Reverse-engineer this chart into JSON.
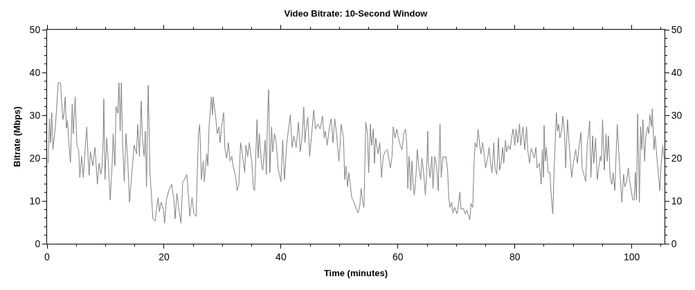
{
  "chart_data": {
    "type": "line",
    "title": "Video Bitrate: 10-Second Window",
    "xlabel": "Time (minutes)",
    "ylabel": "Bitrate (Mbps)",
    "xlim": [
      0,
      105.6
    ],
    "xticks": [
      0,
      {
        "value": 5,
        "label": null
      },
      {
        "value": 10,
        "label": null
      },
      {
        "value": 15,
        "label": null
      },
      20,
      {
        "value": 25,
        "label": null
      },
      {
        "value": 30,
        "label": null
      },
      {
        "value": 35,
        "label": null
      },
      40,
      {
        "value": 45,
        "label": null
      },
      {
        "value": 50,
        "label": null
      },
      {
        "value": 55,
        "label": null
      },
      60,
      {
        "value": 65,
        "label": null
      },
      {
        "value": 70,
        "label": null
      },
      {
        "value": 75,
        "label": null
      },
      80,
      {
        "value": 85,
        "label": null
      },
      {
        "value": 90,
        "label": null
      },
      {
        "value": 95,
        "label": null
      },
      100,
      {
        "value": 105,
        "label": null
      }
    ],
    "ylim": [
      0,
      50
    ],
    "yticks": [
      0,
      {
        "value": 2,
        "label": null
      },
      {
        "value": 4,
        "label": null
      },
      {
        "value": 6,
        "label": null
      },
      {
        "value": 8,
        "label": null
      },
      10,
      {
        "value": 12,
        "label": null
      },
      {
        "value": 14,
        "label": null
      },
      {
        "value": 16,
        "label": null
      },
      {
        "value": 18,
        "label": null
      },
      20,
      {
        "value": 22,
        "label": null
      },
      {
        "value": 24,
        "label": null
      },
      {
        "value": 26,
        "label": null
      },
      {
        "value": 28,
        "label": null
      },
      30,
      {
        "value": 32,
        "label": null
      },
      {
        "value": 34,
        "label": null
      },
      {
        "value": 36,
        "label": null
      },
      {
        "value": 38,
        "label": null
      },
      40,
      {
        "value": 42,
        "label": null
      },
      {
        "value": 44,
        "label": null
      },
      {
        "value": 46,
        "label": null
      },
      {
        "value": 48,
        "label": null
      },
      50
    ],
    "y2lim": [
      0,
      50
    ],
    "y2ticks": [
      0,
      {
        "value": 2,
        "label": null
      },
      {
        "value": 4,
        "label": null
      },
      {
        "value": 6,
        "label": null
      },
      {
        "value": 8,
        "label": null
      },
      10,
      {
        "value": 12,
        "label": null
      },
      {
        "value": 14,
        "label": null
      },
      {
        "value": 16,
        "label": null
      },
      {
        "value": 18,
        "label": null
      },
      20,
      {
        "value": 22,
        "label": null
      },
      {
        "value": 24,
        "label": null
      },
      {
        "value": 26,
        "label": null
      },
      {
        "value": 28,
        "label": null
      },
      30,
      {
        "value": 32,
        "label": null
      },
      {
        "value": 34,
        "label": null
      },
      {
        "value": 36,
        "label": null
      },
      {
        "value": 38,
        "label": null
      },
      40,
      {
        "value": 42,
        "label": null
      },
      {
        "value": 44,
        "label": null
      },
      {
        "value": 46,
        "label": null
      },
      {
        "value": 48,
        "label": null
      },
      50
    ],
    "x": [
      0.2,
      0.4,
      0.6,
      0.8,
      1.0,
      1.4,
      1.6,
      1.9,
      2.3,
      2.5,
      2.7,
      2.9,
      3.1,
      3.3,
      3.5,
      3.7,
      4.0,
      4.3,
      4.5,
      4.8,
      5.1,
      5.4,
      5.6,
      5.9,
      6.2,
      6.5,
      6.8,
      7.0,
      7.2,
      7.4,
      7.8,
      8.2,
      8.6,
      8.9,
      9.2,
      9.4,
      9.6,
      9.7,
      9.9,
      10.2,
      10.5,
      10.8,
      11.1,
      11.3,
      11.6,
      11.8,
      12.1,
      12.3,
      12.5,
      12.7,
      12.9,
      13.2,
      13.5,
      13.8,
      14.1,
      14.6,
      14.9,
      15.3,
      15.5,
      15.8,
      16.1,
      16.3,
      16.6,
      16.8,
      17.0,
      17.3,
      17.6,
      18.1,
      18.5,
      18.7,
      19.0,
      19.2,
      19.5,
      19.9,
      20.1,
      20.4,
      20.8,
      21.3,
      21.7,
      21.9,
      22.2,
      22.6,
      22.9,
      23.2,
      23.5,
      23.9,
      24.2,
      24.4,
      24.8,
      25.1,
      25.5,
      25.7,
      25.9,
      26.1,
      26.4,
      26.7,
      26.9,
      27.3,
      27.5,
      27.7,
      28.1,
      28.3,
      28.4,
      28.8,
      29.1,
      29.4,
      29.6,
      29.9,
      30.2,
      30.4,
      30.7,
      31.0,
      31.3,
      31.6,
      31.8,
      32.1,
      32.3,
      32.5,
      32.8,
      33.1,
      33.4,
      33.8,
      34.0,
      34.3,
      34.6,
      35.0,
      35.3,
      35.5,
      35.9,
      36.1,
      36.3,
      36.7,
      36.9,
      37.3,
      37.5,
      37.7,
      37.9,
      38.1,
      38.4,
      38.6,
      38.9,
      39.2,
      39.5,
      40.0,
      40.3,
      40.6,
      41.0,
      41.6,
      41.9,
      42.2,
      42.6,
      43.0,
      43.3,
      43.6,
      43.9,
      44.1,
      44.3,
      44.6,
      44.9,
      45.2,
      45.6,
      45.9,
      46.3,
      46.7,
      47.1,
      47.4,
      47.6,
      47.9,
      48.3,
      48.6,
      48.9,
      49.2,
      49.5,
      49.9,
      50.1,
      50.3,
      50.7,
      50.9,
      51.1,
      51.4,
      51.6,
      51.8,
      52.1,
      52.5,
      52.9,
      53.2,
      53.5,
      53.7,
      54.0,
      54.2,
      54.4,
      54.5,
      54.8,
      55.0,
      55.3,
      55.5,
      55.8,
      56.0,
      56.2,
      56.6,
      56.9,
      57.2,
      57.5,
      57.8,
      58.2,
      58.7,
      59.0,
      59.2,
      59.5,
      59.8,
      60.1,
      60.4,
      60.7,
      61.0,
      61.3,
      61.5,
      61.7,
      61.9,
      62.2,
      62.4,
      62.6,
      62.8,
      63.1,
      63.3,
      63.6,
      63.9,
      64.1,
      64.4,
      64.7,
      64.9,
      65.1,
      65.2,
      65.5,
      65.8,
      66.0,
      66.3,
      66.6,
      66.9,
      67.2,
      67.4,
      67.7,
      68.0,
      68.2,
      68.5,
      68.7,
      68.9,
      69.2,
      69.4,
      69.7,
      70.1,
      70.3,
      70.6,
      70.8,
      71.2,
      71.5,
      71.8,
      72.1,
      72.3,
      72.5,
      72.8,
      73.0,
      73.2,
      73.5,
      73.7,
      74.0,
      74.2,
      74.5,
      74.8,
      75.0,
      75.4,
      75.6,
      75.8,
      76.1,
      76.4,
      76.6,
      76.9,
      77.2,
      77.4,
      77.7,
      77.9,
      78.1,
      78.4,
      78.6,
      78.9,
      79.2,
      79.5,
      79.7,
      80.0,
      80.2,
      80.5,
      80.8,
      81.0,
      81.4,
      81.7,
      82.0,
      82.2,
      82.5,
      82.8,
      83.1,
      83.3,
      83.6,
      83.8,
      84.2,
      84.5,
      84.7,
      84.9,
      85.0,
      85.2,
      85.4,
      85.7,
      86.0,
      86.2,
      86.4,
      86.5,
      86.7,
      86.9,
      87.1,
      87.3,
      87.5,
      87.7,
      88.0,
      88.2,
      88.5,
      88.7,
      89.0,
      89.3,
      89.5,
      89.7,
      90.0,
      90.4,
      90.7,
      91.0,
      91.3,
      91.5,
      91.8,
      92.1,
      92.4,
      92.6,
      92.8,
      93.0,
      93.3,
      93.5,
      93.8,
      94.1,
      94.3,
      94.6,
      94.8,
      95.0,
      95.3,
      95.6,
      95.8,
      96.0,
      96.3,
      96.6,
      96.8,
      97.1,
      97.5,
      97.8,
      98.0,
      98.3,
      98.6,
      98.8,
      99.1,
      99.4,
      99.6,
      99.9,
      100.2,
      100.4,
      100.6,
      100.8,
      101.0,
      101.3,
      101.5,
      101.7,
      101.9,
      102.2,
      102.4,
      102.7,
      102.9,
      103.1,
      103.4,
      103.5,
      103.8,
      104.0,
      104.3,
      104.6,
      104.8,
      105.0,
      105.3,
      105.5
    ],
    "series": [
      {
        "color": "#808080",
        "values": [
          18.8,
          29.2,
          23.6,
          30.6,
          22,
          27,
          31,
          37.6,
          37.6,
          33,
          29,
          30.5,
          34.3,
          27,
          28.8,
          24,
          19,
          32.6,
          25.7,
          34.3,
          23,
          22,
          15.5,
          20.4,
          15.5,
          22,
          27.3,
          20.4,
          16,
          21.5,
          18.2,
          22.5,
          13.9,
          18.8,
          16.2,
          18.2,
          24.7,
          33.8,
          15,
          24.7,
          18.2,
          10.2,
          17.6,
          25.7,
          18.2,
          32,
          30.5,
          37.6,
          26.3,
          37.6,
          24.2,
          14.5,
          25.7,
          19.3,
          9.7,
          18.2,
          23,
          21,
          27.8,
          20.4,
          33.3,
          24.7,
          20.4,
          26.3,
          13.3,
          37,
          16.7,
          5.8,
          5.3,
          8,
          10.8,
          7.5,
          9.7,
          8,
          4.8,
          10.2,
          12.4,
          13.9,
          10.2,
          5.8,
          11.8,
          7.5,
          4.8,
          14.5,
          15,
          16.2,
          10.8,
          6.4,
          10.8,
          7.0,
          6.4,
          17.2,
          25.7,
          27.9,
          15,
          19.3,
          14.5,
          21,
          18.2,
          27.3,
          34.3,
          30.1,
          34.3,
          30.1,
          25.7,
          27.3,
          23.6,
          27.9,
          30.6,
          22.5,
          20,
          23.6,
          19.3,
          20.4,
          18.2,
          16.6,
          15,
          12.4,
          13.9,
          23.6,
          21,
          16.6,
          23,
          20.4,
          23.6,
          19.3,
          12.9,
          12.4,
          29,
          20,
          25.7,
          18.2,
          17.2,
          24.2,
          16.2,
          29.5,
          36,
          16.6,
          27.3,
          21.5,
          25.7,
          23.6,
          17.7,
          14.5,
          24.2,
          15,
          23.6,
          30.1,
          22.5,
          25.2,
          22.5,
          28.4,
          21.5,
          24.7,
          31.9,
          23.6,
          26.8,
          29.5,
          20.4,
          24.7,
          31.2,
          26.8,
          27.9,
          26.8,
          29.8,
          24.7,
          26.3,
          23,
          27.3,
          29.2,
          23.6,
          29.2,
          25.7,
          19.3,
          22.5,
          27.9,
          24.7,
          15,
          18.2,
          13.3,
          16.6,
          14.5,
          10.8,
          9.7,
          8,
          7.2,
          9.1,
          12.9,
          9.7,
          8.5,
          22,
          28.4,
          25.7,
          16.6,
          27.9,
          23,
          26.8,
          18.8,
          24.7,
          21,
          23.6,
          15.5,
          20.4,
          21.5,
          22,
          17.7,
          20.4,
          27.3,
          24.7,
          26.8,
          24.7,
          23,
          22,
          25.7,
          26.8,
          23.6,
          12.9,
          20.4,
          12.4,
          19.3,
          13.9,
          11.3,
          16.2,
          22,
          17.7,
          15,
          20,
          16.6,
          11.3,
          16.2,
          26.3,
          19.3,
          15.5,
          20.4,
          12.9,
          20.4,
          18.2,
          12.4,
          28,
          15.5,
          20.4,
          20,
          20.4,
          17.2,
          10.8,
          8.5,
          9.7,
          7.2,
          8.5,
          7.0,
          8.5,
          12.1,
          8.0,
          8.3,
          7.0,
          7.8,
          6.4,
          5.6,
          9.4,
          8.5,
          18.2,
          23.6,
          22.5,
          26.8,
          23,
          21,
          23.6,
          20.4,
          17.7,
          20.4,
          22.5,
          19.3,
          16.6,
          23.6,
          17.7,
          16.2,
          24.7,
          17.2,
          19.3,
          22.5,
          18.8,
          24.2,
          21.5,
          23,
          22,
          25.2,
          26.8,
          23,
          26.8,
          23.6,
          28,
          23,
          27.3,
          22,
          27.3,
          22,
          18.8,
          22.3,
          21,
          20,
          22.5,
          17.7,
          18.8,
          13.9,
          22,
          15.5,
          27.6,
          19.3,
          22.5,
          16.6,
          16.6,
          11.8,
          8.3,
          7,
          16.6,
          23.6,
          30.6,
          26.3,
          27.9,
          24.7,
          26.3,
          29.8,
          25.7,
          17.7,
          29,
          23,
          19.3,
          15.5,
          18.8,
          22,
          18.8,
          23,
          26,
          17.7,
          16.2,
          14.5,
          23.6,
          25.7,
          28.7,
          15.5,
          25.2,
          18.8,
          24.7,
          15,
          17.2,
          20.4,
          19.3,
          29,
          17.2,
          25.7,
          19.3,
          25.2,
          15.5,
          13.9,
          16.6,
          12.4,
          27.9,
          21,
          16.2,
          9.7,
          16.2,
          13.3,
          14.5,
          17.7,
          15,
          12.4,
          10.2,
          10.2,
          16.6,
          10.2,
          30.3,
          9.7,
          27.3,
          22,
          29,
          19.3,
          25.2,
          27.3,
          25.7,
          30.1,
          27.3,
          31.5,
          22,
          25.2,
          20,
          15.5,
          12.4,
          18.2,
          23,
          20
        ]
      }
    ]
  }
}
